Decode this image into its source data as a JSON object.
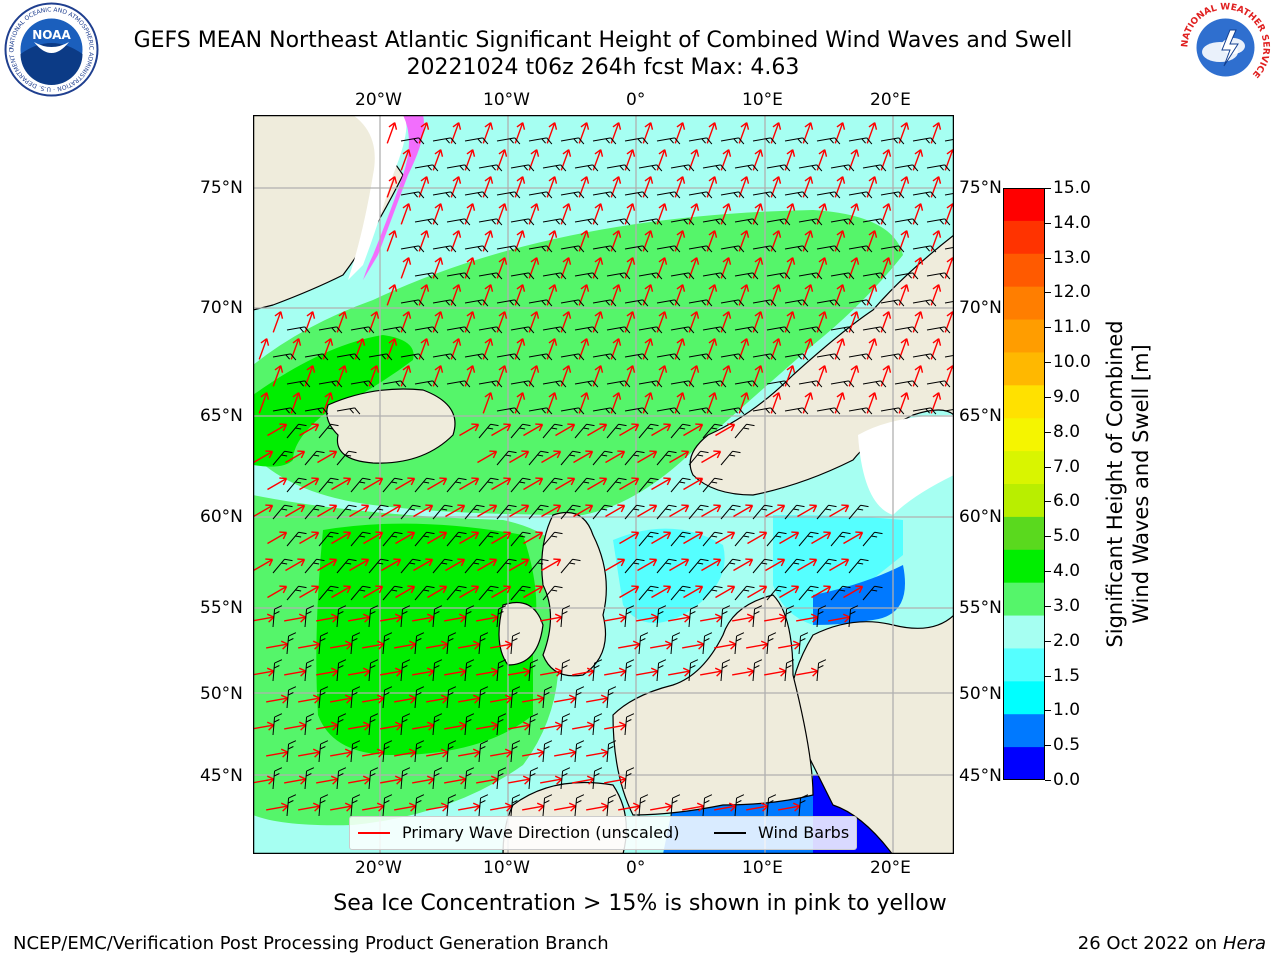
{
  "title": {
    "line1": "GEFS MEAN Northeast Atlantic Significant Height of Combined Wind Waves and Swell",
    "line2": "20221024 t06z 264h fcst   Max: 4.63"
  },
  "logos": {
    "noaa_text": "NOAA",
    "noaa_ring_text": "NATIONAL OCEANIC AND ATMOSPHERIC ADMINISTRATION · U.S. DEPARTMENT OF COMMERCE",
    "nws_ring_text": "NATIONAL WEATHER SERVICE"
  },
  "map": {
    "lon_labels_top": [
      "20°W",
      "10°W",
      "0°",
      "10°E",
      "20°E"
    ],
    "lon_labels_bottom": [
      "20°W",
      "10°W",
      "0°",
      "10°E",
      "20°E"
    ],
    "lat_labels_left": [
      "75°N",
      "70°N",
      "65°N",
      "60°N",
      "55°N",
      "50°N",
      "45°N"
    ],
    "lat_labels_right": [
      "75°N",
      "70°N",
      "65°N",
      "60°N",
      "55°N",
      "50°N",
      "45°N"
    ],
    "colors": {
      "land": "#efecdc",
      "ice": "#ffffff",
      "coast": "#000000",
      "grid": "#b0b0b0",
      "wave_arrow": "#ff0000",
      "barb": "#000000"
    },
    "legend": {
      "wave_label": "Primary Wave Direction (unscaled)",
      "barb_label": "Wind Barbs"
    }
  },
  "colorbar": {
    "label_line1": "Significant Height of Combined",
    "label_line2": "Wind Waves and Swell [m]",
    "ticks": [
      "15.0",
      "14.0",
      "13.0",
      "12.0",
      "11.0",
      "10.0",
      "9.0",
      "8.0",
      "7.0",
      "6.0",
      "5.0",
      "4.0",
      "3.0",
      "2.0",
      "1.5",
      "1.0",
      "0.5",
      "0.0"
    ],
    "colors_top_to_bottom": [
      "#ff0000",
      "#ff3300",
      "#ff5a00",
      "#ff7e00",
      "#ff9d00",
      "#ffb800",
      "#ffe100",
      "#f5f500",
      "#d9f500",
      "#b9ee00",
      "#5ad91e",
      "#00ee00",
      "#55f56a",
      "#a6fff2",
      "#55ffff",
      "#00ffff",
      "#0079ff",
      "#0000ff"
    ]
  },
  "subtitle": "Sea Ice Concentration > 15% is shown in pink to yellow",
  "footer": {
    "left": "NCEP/EMC/Verification Post Processing Product Generation Branch",
    "right_prefix": "26 Oct 2022 on ",
    "right_host": "Hera"
  }
}
